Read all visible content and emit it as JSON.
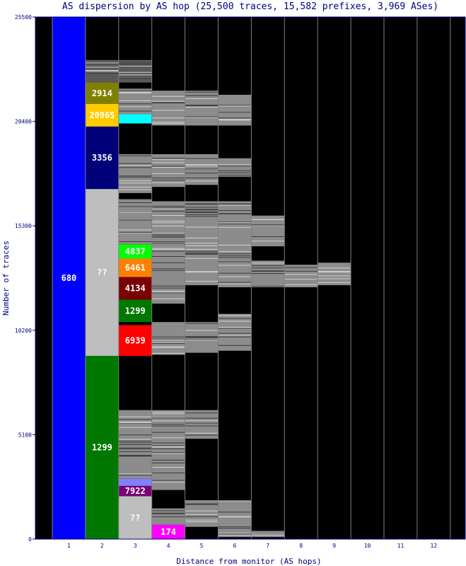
{
  "chart_data": {
    "type": "bar",
    "title": "AS dispersion by AS hop (25,500 traces, 15,582 prefixes, 3,969 ASes)",
    "xlabel": "Distance from monitor (AS hops)",
    "ylabel": "Number of traces",
    "ylim": [
      0,
      25500
    ],
    "yticks": [
      "0",
      "5100",
      "10200",
      "15300",
      "20400",
      "25500"
    ],
    "categories": [
      "1",
      "2",
      "3",
      "4",
      "5",
      "6",
      "7",
      "8",
      "9",
      "10",
      "11",
      "12"
    ],
    "colors": {
      "background": "#000000",
      "divider": "#808080",
      "frame": "#000080",
      "title_text": "#000080",
      "other_as": "#8c8c8c",
      "unknown": "#bebebe"
    },
    "columns": [
      {
        "hop": 1,
        "segments": [
          {
            "label": "680",
            "y0": 0,
            "y1": 25500,
            "color": "#0000ff"
          }
        ]
      },
      {
        "hop": 2,
        "segments": [
          {
            "label": "1299",
            "y0": 0,
            "y1": 8950,
            "color": "#007800"
          },
          {
            "label": "??",
            "y0": 8950,
            "y1": 17100,
            "color": "#bebebe"
          },
          {
            "label": "3356",
            "y0": 17100,
            "y1": 20150,
            "color": "#000078"
          },
          {
            "label": "20965",
            "y0": 20150,
            "y1": 21250,
            "color": "#ffcc00"
          },
          {
            "label": "2914",
            "y0": 21250,
            "y1": 22300,
            "color": "#808000"
          },
          {
            "label": "",
            "y0": 22300,
            "y1": 23400,
            "color": "#5a5a5a"
          }
        ]
      },
      {
        "hop": 3,
        "segments": [
          {
            "label": "??",
            "y0": 0,
            "y1": 2100,
            "color": "#bebebe"
          },
          {
            "label": "7922",
            "y0": 2100,
            "y1": 2600,
            "color": "#780078"
          },
          {
            "label": "",
            "y0": 2600,
            "y1": 2950,
            "color": "#8080ff"
          },
          {
            "label": "",
            "y0": 3250,
            "y1": 3450,
            "color": "#d2b48c"
          },
          {
            "label": "",
            "y0": 2950,
            "y1": 6300,
            "color": "#8c8c8c"
          },
          {
            "label": "6939",
            "y0": 8950,
            "y1": 10450,
            "color": "#ff0000"
          },
          {
            "label": "1299",
            "y0": 10600,
            "y1": 11700,
            "color": "#007800"
          },
          {
            "label": "4134",
            "y0": 11700,
            "y1": 12800,
            "color": "#780000"
          },
          {
            "label": "6461",
            "y0": 12800,
            "y1": 13700,
            "color": "#ff8000"
          },
          {
            "label": "4837",
            "y0": 13700,
            "y1": 14400,
            "color": "#00ff00"
          },
          {
            "label": "",
            "y0": 14400,
            "y1": 16600,
            "color": "#8c8c8c"
          },
          {
            "label": "",
            "y0": 16900,
            "y1": 18800,
            "color": "#8c8c8c"
          },
          {
            "label": "",
            "y0": 20300,
            "y1": 20750,
            "color": "#00ffff"
          },
          {
            "label": "",
            "y0": 20750,
            "y1": 22000,
            "color": "#8c8c8c"
          },
          {
            "label": "",
            "y0": 22300,
            "y1": 23400,
            "color": "#5a5a5a"
          }
        ]
      },
      {
        "hop": 4,
        "segments": [
          {
            "label": "174",
            "y0": 0,
            "y1": 700,
            "color": "#ff00ff"
          },
          {
            "label": "",
            "y0": 700,
            "y1": 1500,
            "color": "#8c8c8c"
          },
          {
            "label": "",
            "y0": 2400,
            "y1": 6300,
            "color": "#8c8c8c"
          },
          {
            "label": "",
            "y0": 9000,
            "y1": 10600,
            "color": "#8c8c8c"
          },
          {
            "label": "",
            "y0": 11500,
            "y1": 16500,
            "color": "#8c8c8c"
          },
          {
            "label": "",
            "y0": 17200,
            "y1": 18800,
            "color": "#8c8c8c"
          },
          {
            "label": "",
            "y0": 20200,
            "y1": 21900,
            "color": "#8c8c8c"
          }
        ]
      },
      {
        "hop": 5,
        "segments": [
          {
            "label": "",
            "y0": 600,
            "y1": 1900,
            "color": "#8c8c8c"
          },
          {
            "label": "",
            "y0": 4900,
            "y1": 6300,
            "color": "#8c8c8c"
          },
          {
            "label": "",
            "y0": 9100,
            "y1": 10600,
            "color": "#8c8c8c"
          },
          {
            "label": "",
            "y0": 12400,
            "y1": 16500,
            "color": "#8c8c8c"
          },
          {
            "label": "",
            "y0": 17300,
            "y1": 18800,
            "color": "#8c8c8c"
          },
          {
            "label": "",
            "y0": 20200,
            "y1": 21900,
            "color": "#8c8c8c"
          }
        ]
      },
      {
        "hop": 6,
        "segments": [
          {
            "label": "",
            "y0": 100,
            "y1": 1900,
            "color": "#8c8c8c"
          },
          {
            "label": "",
            "y0": 9200,
            "y1": 11000,
            "color": "#8c8c8c"
          },
          {
            "label": "",
            "y0": 12300,
            "y1": 16500,
            "color": "#8c8c8c"
          },
          {
            "label": "",
            "y0": 17700,
            "y1": 18600,
            "color": "#8c8c8c"
          },
          {
            "label": "",
            "y0": 20200,
            "y1": 21700,
            "color": "#8c8c8c"
          }
        ]
      },
      {
        "hop": 7,
        "segments": [
          {
            "label": "",
            "y0": 100,
            "y1": 400,
            "color": "#8c8c8c"
          },
          {
            "label": "",
            "y0": 12300,
            "y1": 13600,
            "color": "#8c8c8c"
          },
          {
            "label": "",
            "y0": 14300,
            "y1": 15800,
            "color": "#8c8c8c"
          }
        ]
      },
      {
        "hop": 8,
        "segments": [
          {
            "label": "",
            "y0": 12300,
            "y1": 13400,
            "color": "#8c8c8c"
          }
        ]
      },
      {
        "hop": 9,
        "segments": [
          {
            "label": "",
            "y0": 12400,
            "y1": 13500,
            "color": "#8c8c8c"
          }
        ]
      },
      {
        "hop": 10,
        "segments": []
      },
      {
        "hop": 11,
        "segments": []
      },
      {
        "hop": 12,
        "segments": []
      }
    ]
  }
}
